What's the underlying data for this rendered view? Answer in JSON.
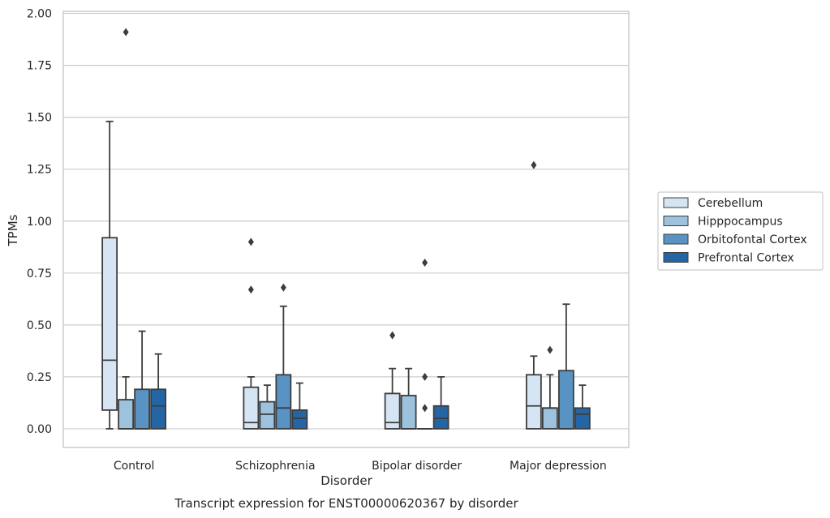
{
  "chart_data": {
    "type": "box",
    "title": "",
    "caption": "Transcript expression for ENST00000620367 by disorder",
    "xlabel": "Disorder",
    "ylabel": "TPMs",
    "ylim": [
      -0.09,
      2.01
    ],
    "yticks": [
      "0.00",
      "0.25",
      "0.50",
      "0.75",
      "1.00",
      "1.25",
      "1.50",
      "1.75",
      "2.00"
    ],
    "grid": true,
    "legend_position": "right",
    "categories": [
      "Control",
      "Schizophrenia",
      "Bipolar disorder",
      "Major depression"
    ],
    "series": [
      {
        "name": "Cerebellum",
        "color": "#d6e5f3",
        "boxes": [
          {
            "min": 0.0,
            "q1": 0.09,
            "median": 0.33,
            "q3": 0.92,
            "max": 1.48,
            "outliers": []
          },
          {
            "min": 0.0,
            "q1": 0.0,
            "median": 0.03,
            "q3": 0.2,
            "max": 0.25,
            "outliers": [
              0.67,
              0.9
            ]
          },
          {
            "min": 0.0,
            "q1": 0.0,
            "median": 0.03,
            "q3": 0.17,
            "max": 0.29,
            "outliers": [
              0.45
            ]
          },
          {
            "min": 0.0,
            "q1": 0.0,
            "median": 0.11,
            "q3": 0.26,
            "max": 0.35,
            "outliers": [
              1.27
            ]
          }
        ]
      },
      {
        "name": "Hipppocampus",
        "color": "#9cc2dd",
        "boxes": [
          {
            "min": 0.0,
            "q1": 0.0,
            "median": 0.0,
            "q3": 0.14,
            "max": 0.25,
            "outliers": [
              1.91
            ]
          },
          {
            "min": 0.0,
            "q1": 0.0,
            "median": 0.07,
            "q3": 0.13,
            "max": 0.21,
            "outliers": []
          },
          {
            "min": 0.0,
            "q1": 0.0,
            "median": 0.0,
            "q3": 0.16,
            "max": 0.29,
            "outliers": []
          },
          {
            "min": 0.0,
            "q1": 0.0,
            "median": 0.1,
            "q3": 0.1,
            "max": 0.26,
            "outliers": [
              0.38
            ]
          }
        ]
      },
      {
        "name": "Orbitofontal Cortex",
        "color": "#5893c3",
        "boxes": [
          {
            "min": 0.0,
            "q1": 0.0,
            "median": 0.0,
            "q3": 0.19,
            "max": 0.47,
            "outliers": []
          },
          {
            "min": 0.0,
            "q1": 0.0,
            "median": 0.1,
            "q3": 0.26,
            "max": 0.59,
            "outliers": [
              0.68
            ]
          },
          {
            "min": 0.0,
            "q1": 0.0,
            "median": 0.0,
            "q3": 0.0,
            "max": 0.0,
            "outliers": [
              0.1,
              0.25,
              0.8
            ]
          },
          {
            "min": 0.0,
            "q1": 0.0,
            "median": 0.0,
            "q3": 0.28,
            "max": 0.6,
            "outliers": []
          }
        ]
      },
      {
        "name": "Prefrontal Cortex",
        "color": "#2466a5",
        "boxes": [
          {
            "min": 0.0,
            "q1": 0.0,
            "median": 0.11,
            "q3": 0.19,
            "max": 0.36,
            "outliers": []
          },
          {
            "min": 0.0,
            "q1": 0.0,
            "median": 0.05,
            "q3": 0.09,
            "max": 0.22,
            "outliers": []
          },
          {
            "min": 0.0,
            "q1": 0.0,
            "median": 0.05,
            "q3": 0.11,
            "max": 0.25,
            "outliers": []
          },
          {
            "min": 0.0,
            "q1": 0.0,
            "median": 0.07,
            "q3": 0.1,
            "max": 0.21,
            "outliers": []
          }
        ]
      }
    ]
  }
}
